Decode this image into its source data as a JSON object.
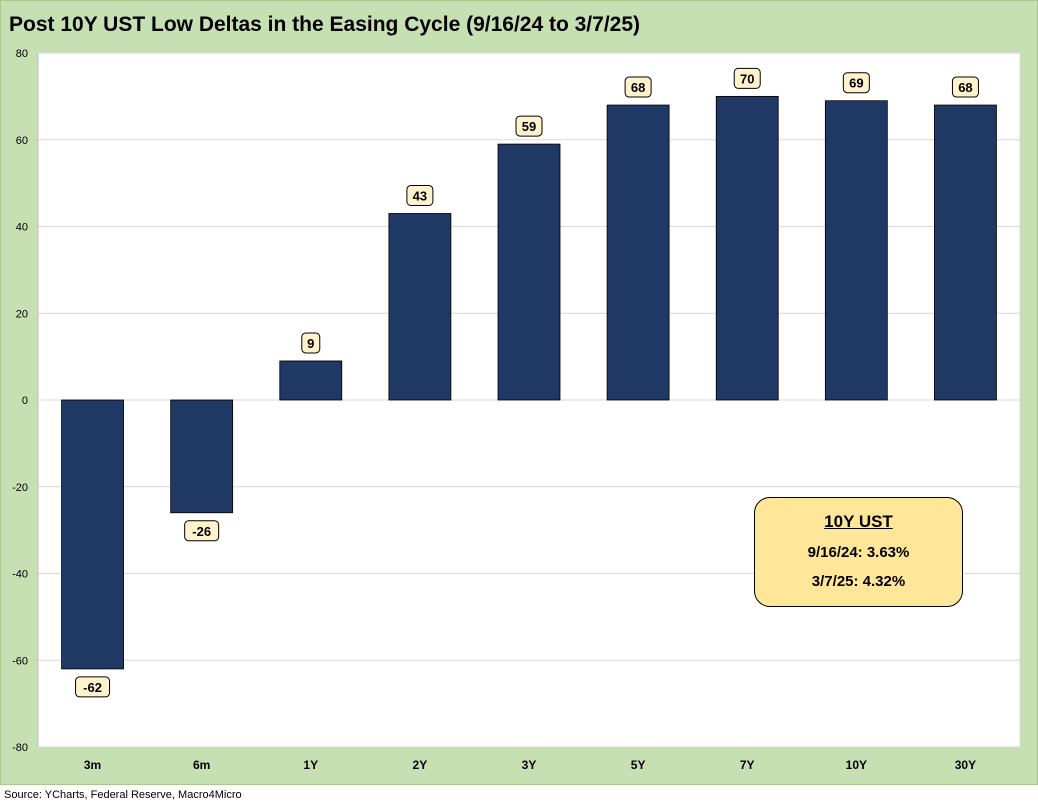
{
  "chart_data": {
    "type": "bar",
    "title": "Post 10Y UST Low Deltas in the Easing Cycle (9/16/24 to 3/7/25)",
    "categories": [
      "3m",
      "6m",
      "1Y",
      "2Y",
      "3Y",
      "5Y",
      "7Y",
      "10Y",
      "30Y"
    ],
    "values": [
      -62,
      -26,
      9,
      43,
      59,
      68,
      70,
      69,
      68
    ],
    "data_labels": [
      "-62",
      "-26",
      "9",
      "43",
      "59",
      "68",
      "70",
      "69",
      "68"
    ],
    "ylim": [
      -80,
      80
    ],
    "yticks": [
      80,
      60,
      40,
      20,
      0,
      -20,
      -40,
      -60,
      -80
    ],
    "ytick_labels": [
      "80",
      "60",
      "40",
      "20",
      "0",
      "-20",
      "-40",
      "-60",
      "-80"
    ],
    "grid": true,
    "bar_color": "#1f3864",
    "label_fill": "#fff2cc",
    "background_color": "#c6e0b4"
  },
  "annotation": {
    "title": "10Y UST",
    "line1": "9/16/24: 3.63%",
    "line2": "3/7/25: 4.32%",
    "fill": "#ffe699"
  },
  "source": "Source: YCharts, Federal Reserve, Macro4Micro"
}
